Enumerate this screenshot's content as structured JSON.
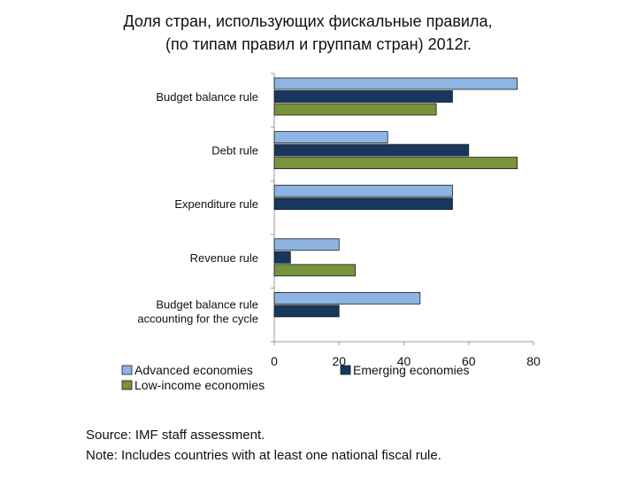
{
  "slide": {
    "title_line1": "Доля стран, использующих фискальные правила,",
    "title_line2": "(по типам правил и группам стран) 2012г."
  },
  "chart_data": {
    "type": "bar",
    "orientation": "horizontal",
    "categories": [
      [
        "Budget balance rule"
      ],
      [
        "Debt rule"
      ],
      [
        "Expenditure rule"
      ],
      [
        "Revenue rule"
      ],
      [
        "Budget balance rule",
        "accounting for the cycle"
      ]
    ],
    "series": [
      {
        "name": "Advanced economies",
        "color": "#8DB4E2",
        "values": [
          75,
          35,
          55,
          20,
          45
        ]
      },
      {
        "name": "Emerging economies",
        "color": "#17375E",
        "values": [
          55,
          60,
          55,
          5,
          20
        ]
      },
      {
        "name": "Low-income economies",
        "color": "#77933C",
        "values": [
          50,
          75,
          null,
          25,
          null
        ]
      }
    ],
    "xlim": [
      0,
      80
    ],
    "xticks": [
      0,
      20,
      40,
      60,
      80
    ],
    "title": "",
    "xlabel": "",
    "ylabel": "",
    "legend_position": "bottom"
  },
  "footnotes": {
    "source": "Source: IMF staff assessment.",
    "note": "Note: Includes countries with at least one national fiscal rule."
  }
}
